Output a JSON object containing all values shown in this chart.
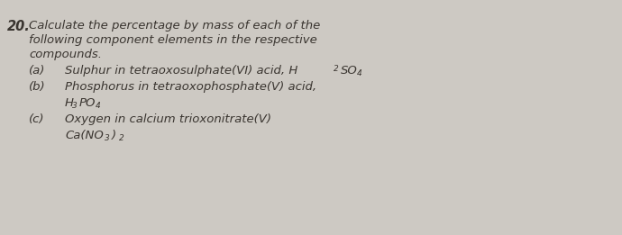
{
  "background_color": "#cdc9c3",
  "text_color": "#3a3530",
  "qnum": "20.",
  "line1": "Calculate the percentage by mass of each of the",
  "line2": "following component elements in the respective",
  "line3": "compounds.",
  "a_label": "(a)",
  "a_text": "Sulphur in tetraoxosulphate(VI) acid, H",
  "a_sub1": "2",
  "a_mid": "SO",
  "a_sub2": "4",
  "b_label": "(b)",
  "b_text": "Phosphorus in tetraoxophosphate(V) acid,",
  "b_formula_H": "H",
  "b_formula_sub1": "3",
  "b_formula_PO": "PO",
  "b_formula_sub2": "4",
  "c_label": "(c)",
  "c_text": "Oxygen in calcium trioxonitrate(V)",
  "c_formula_Ca": "Ca(NO",
  "c_formula_sub1": "3",
  "c_formula_paren": ")",
  "c_formula_sub2": "2",
  "fs": 9.5,
  "fs_sub": 6.5,
  "fs_num": 10.5
}
